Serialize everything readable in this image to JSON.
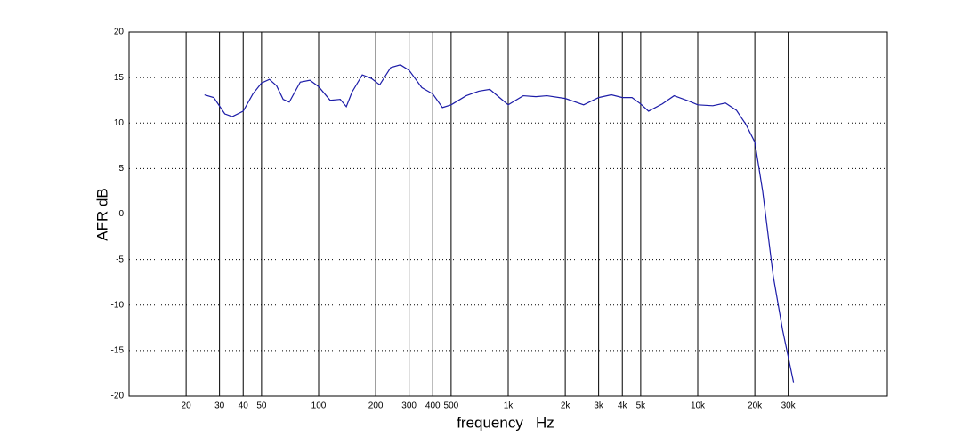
{
  "chart_data": {
    "type": "line",
    "xlabel": "frequency   Hz",
    "ylabel": "AFR dB",
    "xscale": "log",
    "grid": true,
    "xlim": [
      10,
      100000
    ],
    "ylim": [
      -20,
      20
    ],
    "xticks": [
      20,
      30,
      40,
      50,
      100,
      200,
      300,
      400,
      500,
      {
        "value": 1000,
        "label": "1k"
      },
      {
        "value": 2000,
        "label": "2k"
      },
      {
        "value": 3000,
        "label": "3k"
      },
      {
        "value": 4000,
        "label": "4k"
      },
      {
        "value": 5000,
        "label": "5k"
      },
      {
        "value": 10000,
        "label": "10k"
      },
      {
        "value": 20000,
        "label": "20k"
      },
      {
        "value": 30000,
        "label": "30k"
      }
    ],
    "yticks": [
      -20,
      -15,
      -10,
      -5,
      0,
      5,
      10,
      15,
      20
    ],
    "x": [
      25,
      28,
      32,
      35,
      40,
      45,
      50,
      55,
      60,
      65,
      70,
      80,
      90,
      100,
      115,
      130,
      140,
      150,
      170,
      190,
      210,
      240,
      270,
      300,
      350,
      400,
      450,
      500,
      600,
      700,
      800,
      900,
      1000,
      1200,
      1400,
      1600,
      2000,
      2500,
      3000,
      3500,
      4000,
      4500,
      5000,
      5500,
      6500,
      7500,
      9000,
      10000,
      12000,
      14000,
      16000,
      18000,
      20000,
      22000,
      25000,
      28000,
      32000
    ],
    "series": [
      {
        "color": "#1c1ca8",
        "values": [
          13.1,
          12.8,
          11.0,
          10.7,
          11.3,
          13.2,
          14.4,
          14.8,
          14.1,
          12.6,
          12.3,
          14.5,
          14.7,
          14.0,
          12.5,
          12.6,
          11.8,
          13.4,
          15.3,
          14.9,
          14.2,
          16.1,
          16.4,
          15.8,
          13.9,
          13.2,
          11.7,
          12.0,
          13.0,
          13.5,
          13.7,
          12.8,
          12.0,
          13.0,
          12.9,
          13.0,
          12.7,
          12.0,
          12.8,
          13.1,
          12.8,
          12.8,
          12.1,
          11.3,
          12.1,
          13.0,
          12.4,
          12.0,
          11.9,
          12.2,
          11.4,
          9.8,
          7.9,
          2.5,
          -6.8,
          -12.7,
          -18.5
        ]
      }
    ]
  }
}
